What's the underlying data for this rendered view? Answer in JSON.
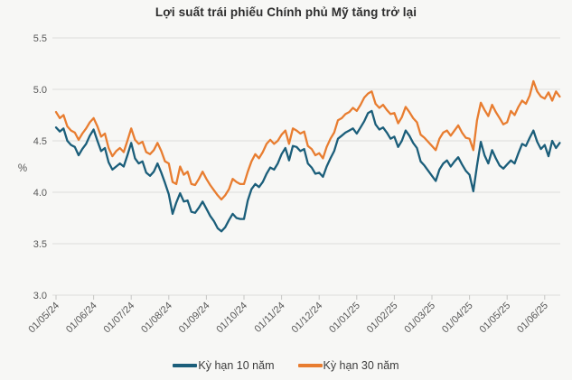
{
  "title": "Lợi suất trái phiếu Chính phủ Mỹ tăng trở lại",
  "colors": {
    "series_10y": "#1b5e7a",
    "series_30y": "#e87d30",
    "grid": "#dcdcda",
    "tick_text": "#595959",
    "legend_text": "#3d3d3d",
    "background": "#f7f7f5"
  },
  "y_axis": {
    "unit_label": "%",
    "tick_labels": [
      "5.5",
      "5.0",
      "4.5",
      "4.0",
      "3.5",
      "3.0"
    ],
    "min": 3.0,
    "max": 5.5
  },
  "x_axis": {
    "tick_labels": [
      "01/05/24",
      "01/06/24",
      "01/07/24",
      "01/08/24",
      "01/09/24",
      "01/10/24",
      "01/11/24",
      "01/12/24",
      "01/01/25",
      "01/02/25",
      "01/03/25",
      "01/04/25",
      "01/05/25",
      "01/06/25"
    ]
  },
  "legend": {
    "items": [
      {
        "label": "Kỳ hạn 10 năm",
        "color": "#1b5e7a"
      },
      {
        "label": "Kỳ hạn 30 năm",
        "color": "#e87d30"
      }
    ],
    "position": "bottom"
  },
  "chart_data": {
    "type": "line",
    "title": "Lợi suất trái phiếu Chính phủ Mỹ tăng trở lại",
    "ylabel": "%",
    "ylim": [
      3.0,
      5.5
    ],
    "y_ticks": [
      5.5,
      5.0,
      4.5,
      4.0,
      3.5,
      3.0
    ],
    "grid": "horizontal",
    "legend_position": "bottom",
    "x_tick_labels": [
      "01/05/24",
      "01/06/24",
      "01/07/24",
      "01/08/24",
      "01/09/24",
      "01/10/24",
      "01/11/24",
      "01/12/24",
      "01/01/25",
      "01/02/25",
      "01/03/25",
      "01/04/25",
      "01/05/25",
      "01/06/25"
    ],
    "points_per_month": 10,
    "series": [
      {
        "name": "Kỳ hạn 10 năm",
        "color": "#1b5e7a",
        "values": [
          4.63,
          4.59,
          4.62,
          4.5,
          4.46,
          4.44,
          4.36,
          4.42,
          4.47,
          4.55,
          4.61,
          4.5,
          4.4,
          4.43,
          4.29,
          4.22,
          4.25,
          4.28,
          4.25,
          4.36,
          4.48,
          4.33,
          4.28,
          4.3,
          4.19,
          4.16,
          4.2,
          4.28,
          4.19,
          4.09,
          3.98,
          3.79,
          3.9,
          3.99,
          3.91,
          3.92,
          3.81,
          3.8,
          3.85,
          3.91,
          3.84,
          3.77,
          3.72,
          3.65,
          3.62,
          3.66,
          3.73,
          3.79,
          3.75,
          3.74,
          3.74,
          3.92,
          4.03,
          4.08,
          4.05,
          4.1,
          4.18,
          4.24,
          4.22,
          4.28,
          4.37,
          4.43,
          4.31,
          4.45,
          4.44,
          4.4,
          4.42,
          4.28,
          4.24,
          4.18,
          4.19,
          4.15,
          4.25,
          4.33,
          4.4,
          4.52,
          4.55,
          4.58,
          4.6,
          4.62,
          4.57,
          4.63,
          4.69,
          4.77,
          4.79,
          4.66,
          4.61,
          4.63,
          4.58,
          4.52,
          4.54,
          4.44,
          4.5,
          4.6,
          4.55,
          4.48,
          4.43,
          4.3,
          4.26,
          4.21,
          4.16,
          4.11,
          4.22,
          4.28,
          4.31,
          4.25,
          4.3,
          4.34,
          4.27,
          4.21,
          4.17,
          4.01,
          4.26,
          4.49,
          4.36,
          4.28,
          4.41,
          4.33,
          4.26,
          4.23,
          4.27,
          4.31,
          4.28,
          4.38,
          4.47,
          4.45,
          4.53,
          4.6,
          4.49,
          4.42,
          4.46,
          4.35,
          4.5,
          4.43,
          4.48
        ]
      },
      {
        "name": "Kỳ hạn 30 năm",
        "color": "#e87d30",
        "values": [
          4.78,
          4.72,
          4.75,
          4.64,
          4.6,
          4.58,
          4.51,
          4.57,
          4.62,
          4.68,
          4.72,
          4.64,
          4.54,
          4.57,
          4.43,
          4.35,
          4.4,
          4.43,
          4.39,
          4.5,
          4.62,
          4.51,
          4.47,
          4.49,
          4.39,
          4.37,
          4.41,
          4.48,
          4.4,
          4.3,
          4.28,
          4.1,
          4.08,
          4.25,
          4.17,
          4.2,
          4.08,
          4.07,
          4.13,
          4.2,
          4.13,
          4.07,
          4.02,
          3.97,
          3.93,
          3.97,
          4.03,
          4.13,
          4.1,
          4.08,
          4.08,
          4.2,
          4.3,
          4.37,
          4.33,
          4.39,
          4.47,
          4.51,
          4.47,
          4.5,
          4.56,
          4.6,
          4.47,
          4.62,
          4.6,
          4.57,
          4.59,
          4.45,
          4.42,
          4.36,
          4.38,
          4.33,
          4.44,
          4.52,
          4.58,
          4.7,
          4.72,
          4.76,
          4.78,
          4.82,
          4.79,
          4.85,
          4.92,
          4.96,
          4.98,
          4.86,
          4.82,
          4.85,
          4.8,
          4.76,
          4.77,
          4.67,
          4.73,
          4.83,
          4.78,
          4.72,
          4.68,
          4.56,
          4.53,
          4.49,
          4.45,
          4.41,
          4.52,
          4.58,
          4.6,
          4.55,
          4.6,
          4.65,
          4.58,
          4.53,
          4.52,
          4.41,
          4.7,
          4.87,
          4.8,
          4.74,
          4.85,
          4.78,
          4.72,
          4.66,
          4.68,
          4.79,
          4.75,
          4.83,
          4.89,
          4.86,
          4.94,
          5.08,
          4.98,
          4.93,
          4.91,
          4.97,
          4.89,
          4.98,
          4.93
        ]
      }
    ]
  }
}
